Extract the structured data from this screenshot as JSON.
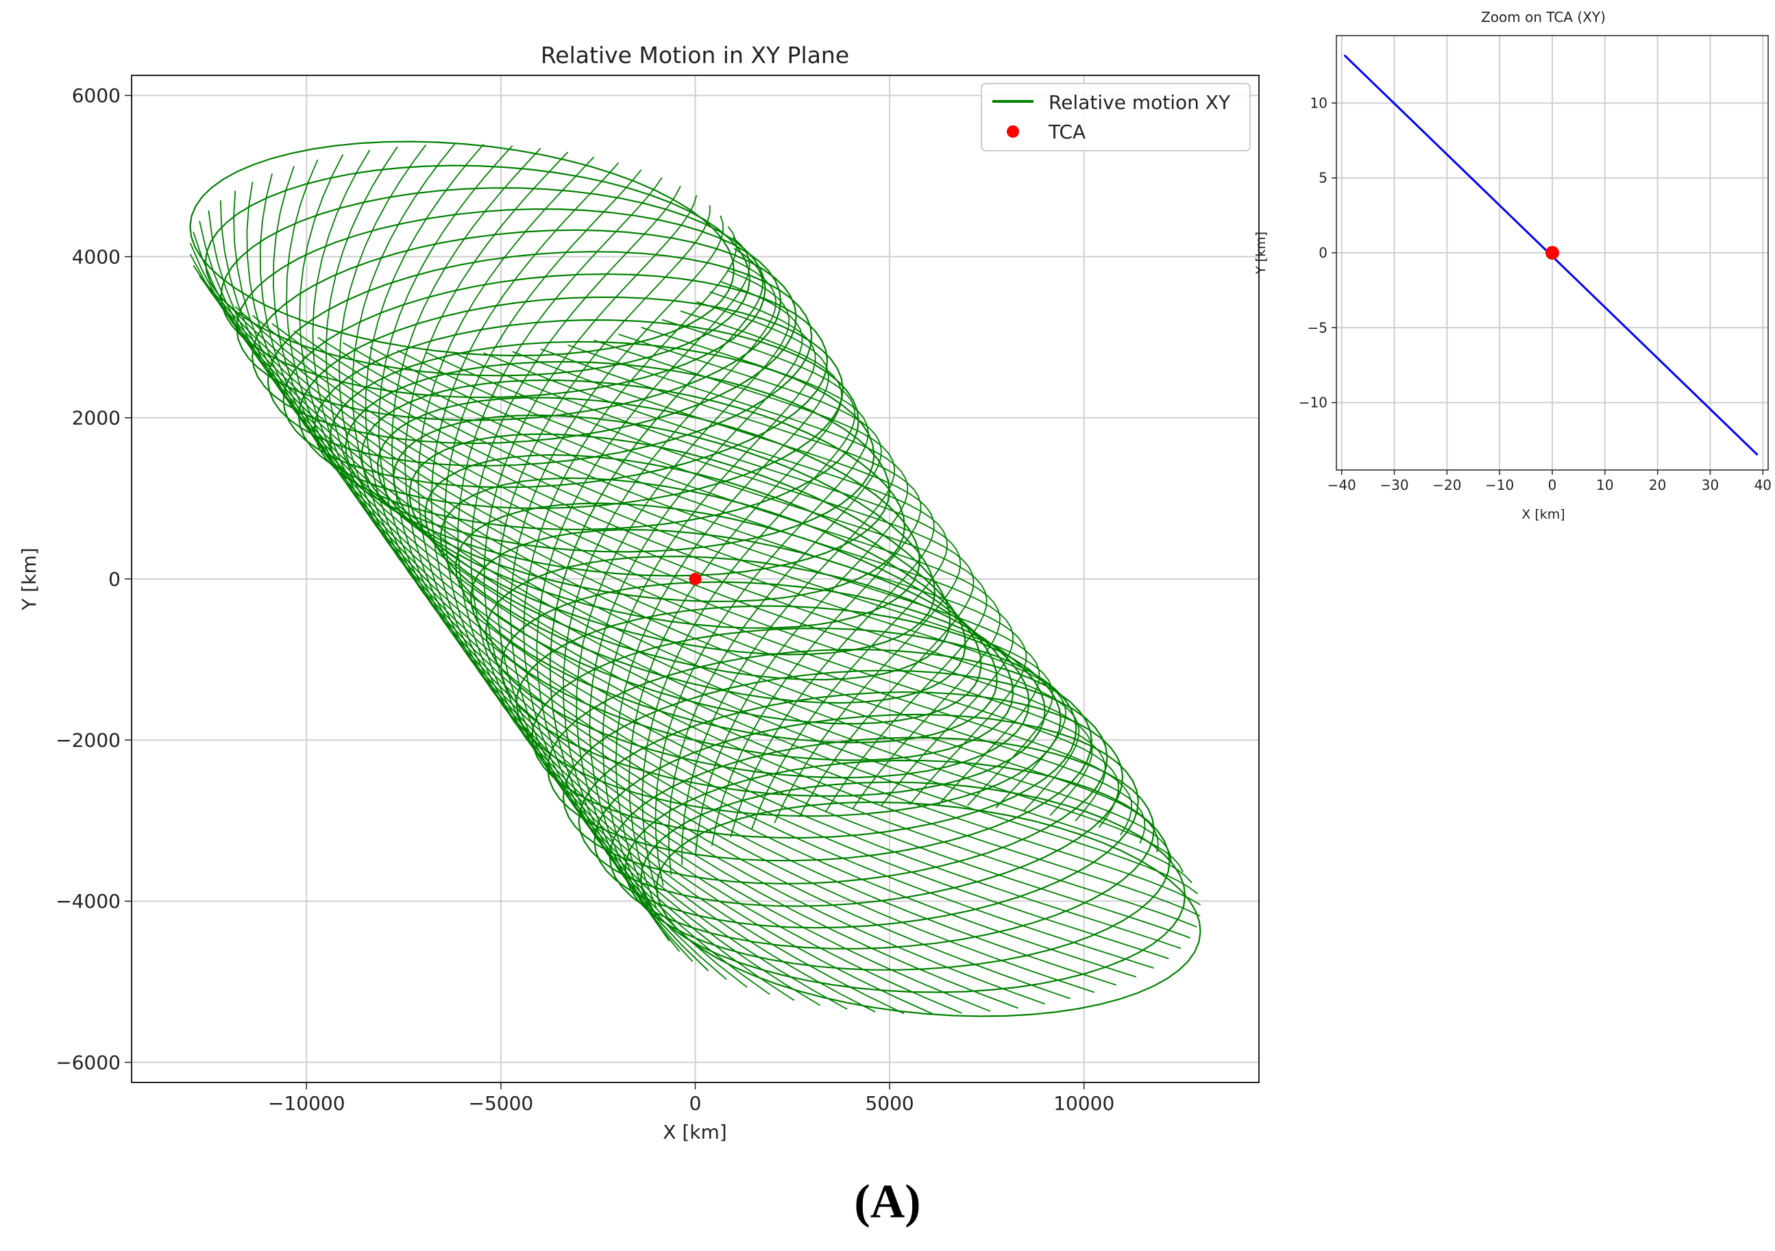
{
  "chart_data": [
    {
      "type": "line",
      "title": "Relative Motion in XY Plane",
      "xlabel": "X [km]",
      "ylabel": "Y [km]",
      "xlim": [
        -14500,
        14500
      ],
      "ylim": [
        -6250,
        6250
      ],
      "xticks": [
        -10000,
        -5000,
        0,
        5000,
        10000
      ],
      "xtick_labels": [
        "−10000",
        "−5000",
        "0",
        "5000",
        "10000"
      ],
      "yticks": [
        6000,
        4000,
        2000,
        0,
        -2000,
        -4000,
        -6000
      ],
      "ytick_labels": [
        "6000",
        "4000",
        "2000",
        "0",
        "−2000",
        "−4000",
        "−6000"
      ],
      "grid": true,
      "legend_position": "top-right",
      "series": [
        {
          "name": "Relative motion XY",
          "color": "#008000",
          "pattern": "precessing elliptical loops, 30 revolutions",
          "ellipse_center_extent": [
            -6000,
            4100,
            6000,
            -4100
          ],
          "ellipse_semi_axes": [
            7000,
            1300
          ]
        }
      ],
      "markers": [
        {
          "name": "TCA",
          "x": 0,
          "y": 0,
          "color": "#ff0000"
        }
      ]
    },
    {
      "type": "line",
      "title": "Zoom on TCA (XY)",
      "xlabel": "X [km]",
      "ylabel": "Y [km]",
      "xlim": [
        -41,
        41
      ],
      "ylim": [
        -14.5,
        14.5
      ],
      "xticks": [
        -40,
        -30,
        -20,
        -10,
        0,
        10,
        20,
        30,
        40
      ],
      "xtick_labels": [
        "−40",
        "−30",
        "−20",
        "−10",
        "0",
        "10",
        "20",
        "30",
        "40"
      ],
      "yticks": [
        10,
        5,
        0,
        -5,
        -10
      ],
      "ytick_labels": [
        "10",
        "5",
        "0",
        "−5",
        "−10"
      ],
      "grid": true,
      "series": [
        {
          "color": "#0000ff",
          "x": [
            -39.5,
            39
          ],
          "y": [
            13.2,
            -13.5
          ]
        }
      ],
      "markers": [
        {
          "x": 0,
          "y": 0,
          "color": "#ff0000"
        }
      ]
    }
  ],
  "panel_label": "(A)"
}
